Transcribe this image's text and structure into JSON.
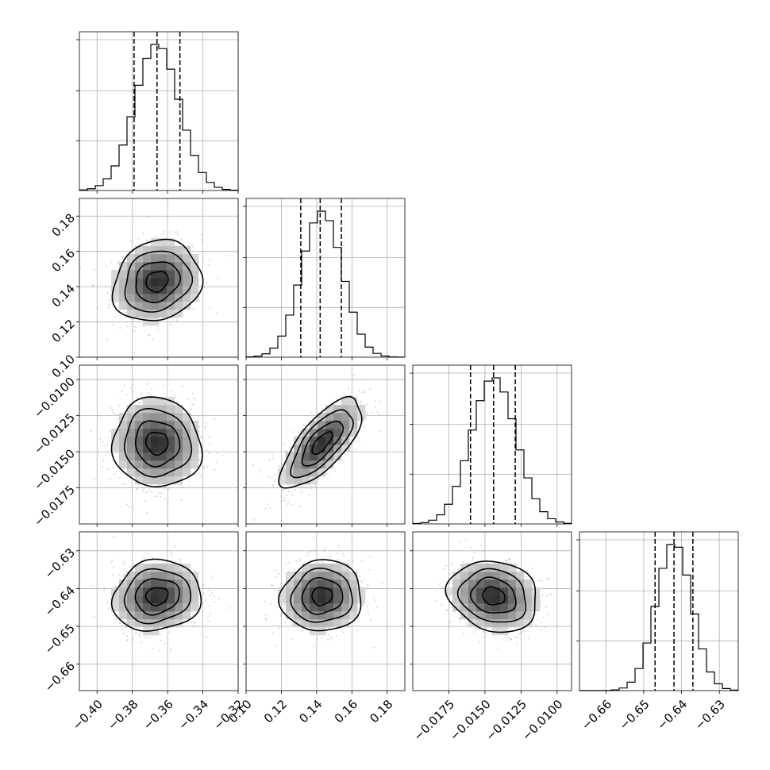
{
  "chart_data": {
    "type": "corner",
    "params": [
      {
        "mean": -0.366,
        "std": 0.0125,
        "range": [
          -0.41,
          -0.32
        ],
        "ticks": [
          -0.4,
          -0.38,
          -0.36,
          -0.34,
          -0.32
        ],
        "tick_labels": [
          "−0.40",
          "−0.38",
          "−0.36",
          "−0.34",
          "−0.32"
        ],
        "quantiles": [
          -0.379,
          -0.366,
          -0.353
        ]
      },
      {
        "mean": 0.143,
        "std": 0.0115,
        "range": [
          0.1,
          0.19
        ],
        "ticks": [
          0.1,
          0.12,
          0.14,
          0.16,
          0.18
        ],
        "tick_labels": [
          "0.10",
          "0.12",
          "0.14",
          "0.16",
          "0.18"
        ],
        "quantiles": [
          0.131,
          0.142,
          0.154
        ]
      },
      {
        "mean": -0.0144,
        "std": 0.00155,
        "range": [
          -0.02,
          -0.009
        ],
        "ticks": [
          -0.0175,
          -0.015,
          -0.0125,
          -0.01
        ],
        "tick_labels": [
          "−0.0175",
          "−0.0150",
          "−0.0125",
          "−0.0100"
        ],
        "quantiles": [
          -0.016,
          -0.0144,
          -0.0129
        ]
      },
      {
        "mean": -0.642,
        "std": 0.0047,
        "range": [
          -0.667,
          -0.625
        ],
        "ticks": [
          -0.66,
          -0.65,
          -0.64,
          -0.63
        ],
        "tick_labels": [
          "−0.66",
          "−0.65",
          "−0.64",
          "−0.63"
        ],
        "quantiles": [
          -0.647,
          -0.642,
          -0.637
        ]
      }
    ],
    "diag_y_ticks": [
      0.33,
      0.66,
      1.0
    ],
    "correlations": {
      "1-0": 0.15,
      "2-0": -0.05,
      "2-1": 0.72,
      "3-0": 0.1,
      "3-1": 0.05,
      "3-2": -0.15
    },
    "contour_levels_sigma": [
      0.5,
      1.0,
      1.5,
      2.0
    ],
    "grid": true
  }
}
